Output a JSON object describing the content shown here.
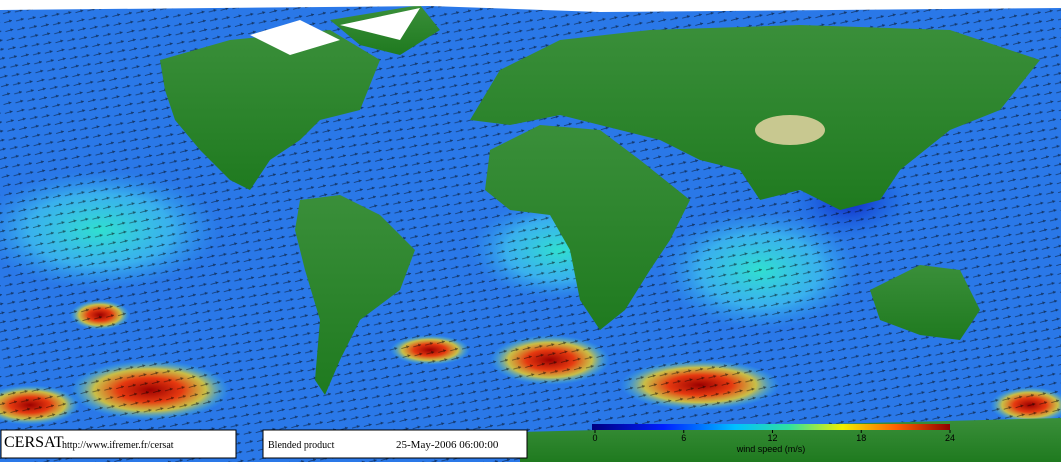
{
  "footer": {
    "logo": "CERSAT",
    "url": "http://www.ifremer.fr/cersat",
    "product": "Blended product",
    "date": "25-May-2006 06:00:00"
  },
  "colorbar": {
    "label": "wind speed (m/s)",
    "range": [
      0,
      24
    ],
    "ticks": [
      0,
      6,
      12,
      18,
      24
    ]
  }
}
